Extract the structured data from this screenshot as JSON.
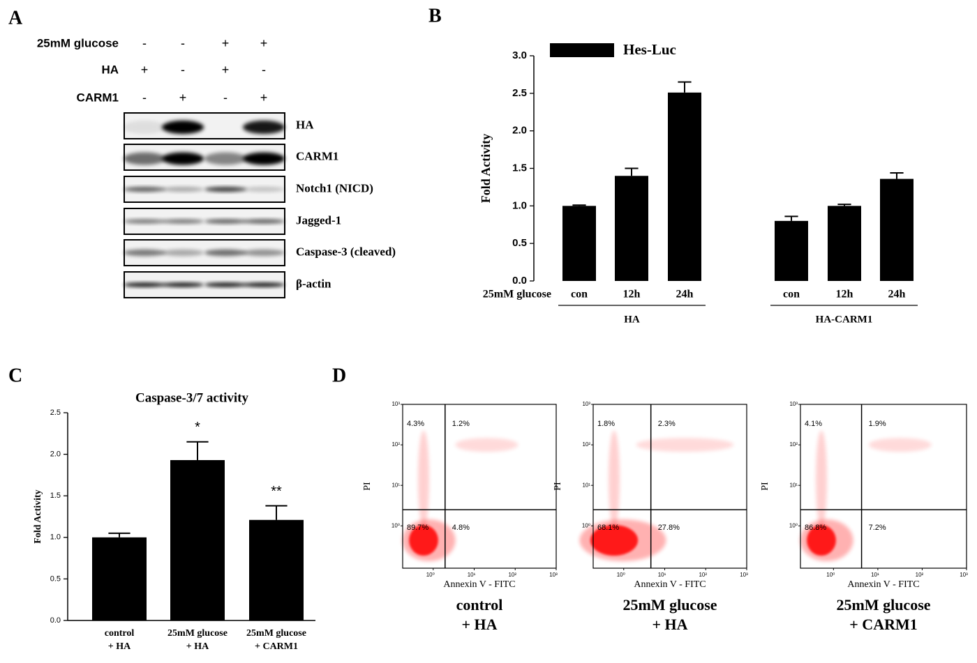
{
  "panel_labels": [
    "A",
    "B",
    "C",
    "D"
  ],
  "blot": {
    "conditions": [
      {
        "label": "25mM glucose",
        "signs": [
          "-",
          "-",
          "+",
          "+"
        ]
      },
      {
        "label": "HA",
        "signs": [
          "+",
          "-",
          "+",
          "-"
        ]
      },
      {
        "label": "CARM1",
        "signs": [
          "-",
          "+",
          "-",
          "+"
        ]
      }
    ],
    "bands": [
      "HA",
      "CARM1",
      "Notch1 (NICD)",
      "Jagged-1",
      "Caspase-3 (cleaved)",
      "β-actin"
    ]
  },
  "chart_data": [
    {
      "type": "bar",
      "ylabel": "Fold Activity",
      "x_row_label": "25mM glucose",
      "category_groups": [
        {
          "label": "HA",
          "categories": [
            "con",
            "12h",
            "24h"
          ]
        },
        {
          "label": "HA-CARM1",
          "categories": [
            "con",
            "12h",
            "24h"
          ]
        }
      ],
      "series": [
        {
          "name": "Hes-Luc",
          "color": "#000000",
          "values": [
            1.0,
            1.4,
            2.51,
            0.8,
            1.0,
            1.36
          ],
          "errors": [
            0.01,
            0.1,
            0.14,
            0.06,
            0.02,
            0.08
          ]
        }
      ],
      "ylim": [
        0,
        3
      ],
      "yticks": [
        {
          "value": 0,
          "label": "0.0"
        },
        0.5,
        {
          "value": 1,
          "label": "1.0"
        },
        1.5,
        {
          "value": 2,
          "label": "2.0"
        },
        2.5,
        {
          "value": 3,
          "label": "3.0"
        }
      ],
      "legend": "top-left"
    },
    {
      "type": "bar",
      "title": "Caspase-3/7 activity",
      "ylabel": "Fold Activity",
      "categories": [
        [
          "control",
          "+ HA"
        ],
        [
          "25mM glucose",
          "+ HA"
        ],
        [
          "25mM glucose",
          "+ CARM1"
        ]
      ],
      "values": [
        1.0,
        1.93,
        1.21
      ],
      "errors": [
        0.05,
        0.22,
        0.17
      ],
      "significance": [
        null,
        "*",
        "**"
      ],
      "color": "#000000",
      "ylim": [
        0,
        2.5
      ],
      "yticks": [
        {
          "value": 0,
          "label": "0.0"
        },
        0.5,
        {
          "value": 1,
          "label": "1.0"
        },
        1.5,
        {
          "value": 2,
          "label": "2.0"
        },
        2.5
      ]
    },
    {
      "type": "scatter",
      "caption": [
        "control",
        "+ HA"
      ],
      "xlabel": "Annexin V - FITC",
      "ylabel": "PI",
      "log_scale": true,
      "color": "#ff0000",
      "xlim": [
        0.18,
        1000
      ],
      "ylim": [
        0.09,
        1000
      ],
      "xticks": [
        {
          "value": 1,
          "label": "10⁰"
        },
        {
          "value": 10,
          "label": "10¹"
        },
        {
          "value": 100,
          "label": "10²"
        },
        {
          "value": 1000,
          "label": "10³"
        }
      ],
      "yticks": [
        {
          "value": 1,
          "label": "10⁰"
        },
        {
          "value": 10,
          "label": "10¹"
        },
        {
          "value": 100,
          "label": "10²"
        },
        {
          "value": 1000,
          "label": "10³"
        }
      ],
      "gates": {
        "x": 1.95,
        "y": 2.5
      },
      "quadrants": {
        "values": [
          4.3,
          1.2,
          89.7,
          4.8
        ],
        "value_labels": [
          "4.3%",
          "1.2%",
          "89.7%",
          "4.8%"
        ]
      }
    },
    {
      "type": "scatter",
      "caption": [
        "25mM glucose",
        "+ HA"
      ],
      "xlabel": "Annexin V - FITC",
      "ylabel": "PI",
      "log_scale": true,
      "color": "#ff0000",
      "xlim": [
        0.18,
        1000
      ],
      "ylim": [
        0.09,
        1000
      ],
      "xticks": [
        {
          "value": 1,
          "label": "10⁰"
        },
        {
          "value": 10,
          "label": "10¹"
        },
        {
          "value": 100,
          "label": "10²"
        },
        {
          "value": 1000,
          "label": "10³"
        }
      ],
      "yticks": [
        {
          "value": 1,
          "label": "10⁰"
        },
        {
          "value": 10,
          "label": "10¹"
        },
        {
          "value": 100,
          "label": "10²"
        },
        {
          "value": 1000,
          "label": "10³"
        }
      ],
      "gates": {
        "x": 4.6,
        "y": 2.5
      },
      "quadrants": {
        "values": [
          1.8,
          2.3,
          68.1,
          27.8
        ],
        "value_labels": [
          "1.8%",
          "2.3%",
          "68.1%",
          "27.8%"
        ]
      }
    },
    {
      "type": "scatter",
      "caption": [
        "25mM glucose",
        "+ CARM1"
      ],
      "xlabel": "Annexin V - FITC",
      "ylabel": "PI",
      "log_scale": true,
      "color": "#ff0000",
      "xlim": [
        0.18,
        1000
      ],
      "ylim": [
        0.09,
        1000
      ],
      "xticks": [
        {
          "value": 1,
          "label": "10⁰"
        },
        {
          "value": 10,
          "label": "10¹"
        },
        {
          "value": 100,
          "label": "10²"
        },
        {
          "value": 1000,
          "label": "10³"
        }
      ],
      "yticks": [
        {
          "value": 1,
          "label": "10⁰"
        },
        {
          "value": 10,
          "label": "10¹"
        },
        {
          "value": 100,
          "label": "10²"
        },
        {
          "value": 1000,
          "label": "10³"
        }
      ],
      "gates": {
        "x": 4.3,
        "y": 2.5
      },
      "quadrants": {
        "values": [
          4.1,
          1.9,
          86.8,
          7.2
        ],
        "value_labels": [
          "4.1%",
          "1.9%",
          "86.8%",
          "7.2%"
        ]
      }
    }
  ]
}
